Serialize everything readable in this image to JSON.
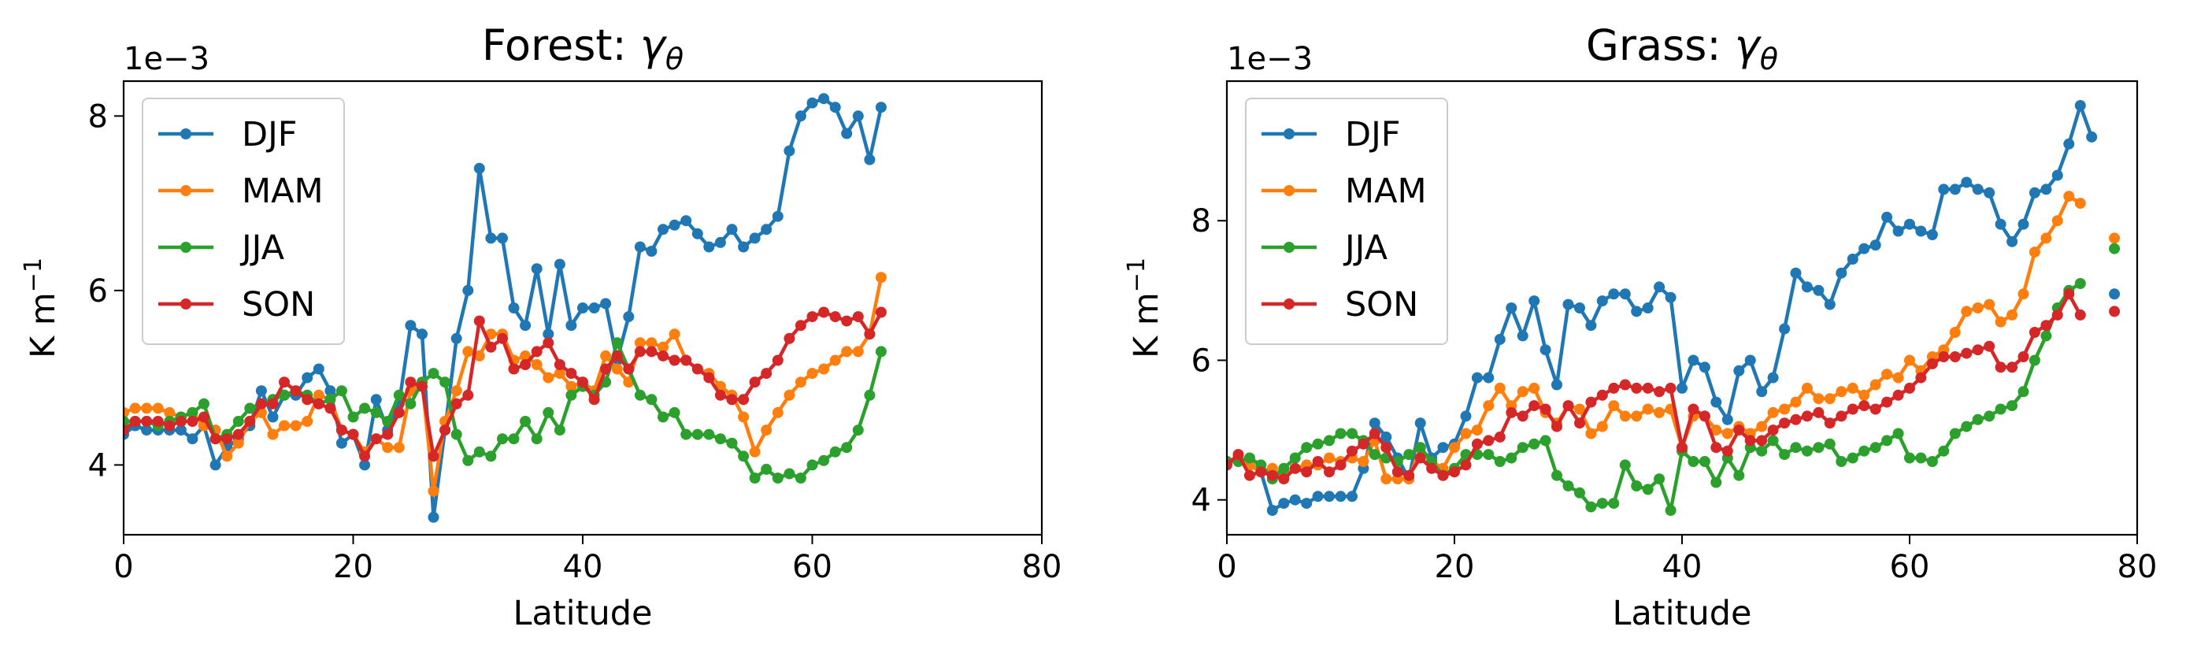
{
  "chart_data": [
    {
      "type": "line",
      "title": "Forest: ",
      "title_symbol": "γ",
      "title_subscript": "θ",
      "xlabel": "Latitude",
      "ylabel_base": "K m",
      "ylabel_sup": "−1",
      "offset_text": "1e−3",
      "xlim": [
        0,
        80
      ],
      "ylim": [
        3.2,
        8.4
      ],
      "xticks": [
        0,
        20,
        40,
        60,
        80
      ],
      "yticks": [
        4,
        6,
        8
      ],
      "grid": false,
      "legend_position": "upper left",
      "x": [
        0,
        1,
        2,
        3,
        4,
        5,
        6,
        7,
        8,
        9,
        10,
        11,
        12,
        13,
        14,
        15,
        16,
        17,
        18,
        19,
        20,
        21,
        22,
        23,
        24,
        25,
        26,
        27,
        28,
        29,
        30,
        31,
        32,
        33,
        34,
        35,
        36,
        37,
        38,
        39,
        40,
        41,
        42,
        43,
        44,
        45,
        46,
        47,
        48,
        49,
        50,
        51,
        52,
        53,
        54,
        55,
        56,
        57,
        58,
        59,
        60,
        61,
        62,
        63,
        64,
        65,
        66
      ],
      "series": [
        {
          "name": "DJF",
          "color": "#1f77b4",
          "values": [
            4.35,
            4.45,
            4.4,
            4.4,
            4.4,
            4.4,
            4.3,
            4.45,
            4.0,
            4.2,
            4.3,
            4.45,
            4.85,
            4.55,
            4.8,
            4.8,
            5.0,
            5.1,
            4.85,
            4.25,
            4.35,
            4.0,
            4.75,
            4.4,
            4.7,
            5.6,
            5.5,
            3.4,
            4.4,
            5.45,
            6.0,
            7.4,
            6.6,
            6.6,
            5.8,
            5.6,
            6.25,
            5.5,
            6.3,
            5.6,
            5.8,
            5.8,
            5.85,
            5.2,
            5.7,
            6.5,
            6.45,
            6.7,
            6.75,
            6.8,
            6.65,
            6.5,
            6.55,
            6.7,
            6.5,
            6.6,
            6.7,
            6.85,
            7.6,
            8.0,
            8.15,
            8.2,
            8.1,
            7.8,
            8.0,
            7.5,
            8.1
          ]
        },
        {
          "name": "MAM",
          "color": "#ff7f0e",
          "values": [
            4.6,
            4.65,
            4.65,
            4.65,
            4.6,
            4.55,
            4.6,
            4.45,
            4.4,
            4.1,
            4.25,
            4.5,
            4.6,
            4.35,
            4.45,
            4.45,
            4.5,
            4.8,
            4.75,
            4.4,
            4.35,
            4.15,
            4.3,
            4.2,
            4.2,
            4.85,
            4.95,
            3.7,
            4.5,
            4.85,
            5.3,
            5.25,
            5.5,
            5.5,
            5.2,
            5.25,
            5.15,
            5.0,
            5.05,
            4.9,
            4.95,
            4.85,
            5.25,
            5.1,
            4.95,
            5.4,
            5.4,
            5.35,
            5.5,
            5.2,
            5.1,
            5.05,
            4.9,
            4.8,
            4.55,
            4.15,
            4.4,
            4.6,
            4.8,
            4.95,
            5.05,
            5.1,
            5.2,
            5.3,
            5.3,
            5.5,
            6.15
          ]
        },
        {
          "name": "JJA",
          "color": "#2ca02c",
          "values": [
            4.5,
            4.5,
            4.5,
            4.45,
            4.5,
            4.55,
            4.6,
            4.7,
            4.3,
            4.35,
            4.5,
            4.65,
            4.7,
            4.75,
            4.8,
            4.85,
            4.8,
            4.7,
            4.75,
            4.85,
            4.55,
            4.65,
            4.6,
            4.5,
            4.8,
            4.7,
            4.95,
            5.05,
            4.95,
            4.35,
            4.05,
            4.15,
            4.1,
            4.3,
            4.3,
            4.5,
            4.3,
            4.6,
            4.4,
            4.8,
            4.9,
            4.8,
            4.95,
            5.4,
            5.1,
            4.8,
            4.75,
            4.55,
            4.6,
            4.35,
            4.35,
            4.35,
            4.3,
            4.25,
            4.1,
            3.85,
            3.95,
            3.85,
            3.9,
            3.85,
            4.0,
            4.05,
            4.15,
            4.2,
            4.4,
            4.8,
            5.3
          ]
        },
        {
          "name": "SON",
          "color": "#d62728",
          "values": [
            4.4,
            4.5,
            4.5,
            4.5,
            4.45,
            4.5,
            4.5,
            4.55,
            4.3,
            4.3,
            4.35,
            4.5,
            4.7,
            4.7,
            4.95,
            4.85,
            4.75,
            4.7,
            4.65,
            4.4,
            4.35,
            4.1,
            4.3,
            4.35,
            4.6,
            4.95,
            4.9,
            4.1,
            4.4,
            4.7,
            4.8,
            5.65,
            5.35,
            5.45,
            5.1,
            5.15,
            5.3,
            5.4,
            5.15,
            5.05,
            4.95,
            4.75,
            5.1,
            5.25,
            5.1,
            5.3,
            5.3,
            5.25,
            5.2,
            5.2,
            5.1,
            5.0,
            4.8,
            4.75,
            4.75,
            4.95,
            5.05,
            5.2,
            5.45,
            5.6,
            5.7,
            5.75,
            5.7,
            5.65,
            5.7,
            5.5,
            5.75
          ]
        }
      ]
    },
    {
      "type": "line",
      "title": "Grass: ",
      "title_symbol": "γ",
      "title_subscript": "θ",
      "xlabel": "Latitude",
      "ylabel_base": "K m",
      "ylabel_sup": "−1",
      "offset_text": "1e−3",
      "xlim": [
        0,
        80
      ],
      "ylim": [
        3.5,
        10.0
      ],
      "xticks": [
        0,
        20,
        40,
        60,
        80
      ],
      "yticks": [
        4,
        6,
        8
      ],
      "grid": false,
      "legend_position": "upper left",
      "x": [
        0,
        1,
        2,
        3,
        4,
        5,
        6,
        7,
        8,
        9,
        10,
        11,
        12,
        13,
        14,
        15,
        16,
        17,
        18,
        19,
        20,
        21,
        22,
        23,
        24,
        25,
        26,
        27,
        28,
        29,
        30,
        31,
        32,
        33,
        34,
        35,
        36,
        37,
        38,
        39,
        40,
        41,
        42,
        43,
        44,
        45,
        46,
        47,
        48,
        49,
        50,
        51,
        52,
        53,
        54,
        55,
        56,
        57,
        58,
        59,
        60,
        61,
        62,
        63,
        64,
        65,
        66,
        67,
        68,
        69,
        70,
        71,
        72,
        73,
        74,
        75,
        76,
        77,
        78
      ],
      "series": [
        {
          "name": "DJF",
          "color": "#1f77b4",
          "values": [
            4.55,
            4.6,
            4.5,
            4.4,
            3.85,
            3.95,
            4.0,
            3.95,
            4.05,
            4.05,
            4.05,
            4.05,
            4.45,
            5.1,
            4.9,
            4.6,
            4.3,
            5.1,
            4.6,
            4.75,
            4.8,
            5.2,
            5.75,
            5.75,
            6.3,
            6.75,
            6.35,
            6.85,
            6.15,
            5.65,
            6.8,
            6.75,
            6.5,
            6.85,
            6.95,
            6.95,
            6.7,
            6.75,
            7.05,
            6.9,
            5.6,
            6.0,
            5.9,
            5.4,
            5.15,
            5.85,
            6.0,
            5.55,
            5.75,
            6.45,
            7.25,
            7.05,
            7.0,
            6.8,
            7.25,
            7.45,
            7.6,
            7.65,
            8.05,
            7.85,
            7.95,
            7.85,
            7.8,
            8.45,
            8.45,
            8.55,
            8.45,
            8.4,
            7.95,
            7.7,
            7.95,
            8.4,
            8.45,
            8.65,
            9.1,
            9.65,
            9.2,
            null,
            6.95
          ]
        },
        {
          "name": "MAM",
          "color": "#ff7f0e",
          "values": [
            4.55,
            4.6,
            4.5,
            4.4,
            4.45,
            4.35,
            4.45,
            4.5,
            4.5,
            4.6,
            4.55,
            4.6,
            4.55,
            4.85,
            4.3,
            4.3,
            4.3,
            4.75,
            4.55,
            4.45,
            4.75,
            4.95,
            5.0,
            5.35,
            5.6,
            5.35,
            5.55,
            5.6,
            5.25,
            5.1,
            5.35,
            5.3,
            4.95,
            5.05,
            5.35,
            5.2,
            5.2,
            5.3,
            5.25,
            5.3,
            4.75,
            5.2,
            5.2,
            5.0,
            4.95,
            5.05,
            4.95,
            5.05,
            5.25,
            5.3,
            5.4,
            5.6,
            5.45,
            5.45,
            5.55,
            5.6,
            5.5,
            5.65,
            5.8,
            5.75,
            6.0,
            5.85,
            6.05,
            6.15,
            6.4,
            6.7,
            6.75,
            6.8,
            6.55,
            6.65,
            6.95,
            7.55,
            7.75,
            8.0,
            8.35,
            8.25,
            null,
            null,
            7.75
          ]
        },
        {
          "name": "JJA",
          "color": "#2ca02c",
          "values": [
            4.55,
            4.55,
            4.6,
            4.5,
            4.3,
            4.45,
            4.6,
            4.75,
            4.8,
            4.85,
            4.95,
            4.95,
            4.85,
            4.65,
            4.6,
            4.55,
            4.65,
            4.75,
            4.55,
            4.35,
            4.45,
            4.65,
            4.65,
            4.65,
            4.55,
            4.6,
            4.75,
            4.8,
            4.85,
            4.35,
            4.2,
            4.1,
            3.9,
            3.95,
            3.95,
            4.5,
            4.2,
            4.15,
            4.3,
            3.85,
            4.7,
            4.55,
            4.55,
            4.25,
            4.6,
            4.35,
            4.75,
            4.7,
            4.85,
            4.65,
            4.75,
            4.7,
            4.75,
            4.8,
            4.55,
            4.6,
            4.7,
            4.75,
            4.85,
            4.95,
            4.6,
            4.6,
            4.55,
            4.7,
            4.95,
            5.05,
            5.15,
            5.2,
            5.3,
            5.35,
            5.55,
            6.0,
            6.35,
            6.75,
            7.0,
            7.1,
            null,
            null,
            7.6
          ]
        },
        {
          "name": "SON",
          "color": "#d62728",
          "values": [
            4.5,
            4.65,
            4.35,
            4.4,
            4.35,
            4.3,
            4.45,
            4.4,
            4.55,
            4.4,
            4.5,
            4.7,
            4.8,
            4.95,
            4.75,
            4.4,
            4.35,
            4.6,
            4.45,
            4.35,
            4.4,
            4.5,
            4.8,
            4.85,
            4.9,
            5.25,
            5.2,
            5.35,
            5.3,
            5.05,
            5.35,
            5.1,
            5.4,
            5.5,
            5.6,
            5.65,
            5.6,
            5.6,
            5.55,
            5.6,
            4.75,
            5.3,
            5.2,
            4.75,
            4.7,
            5.0,
            4.85,
            4.85,
            5.0,
            5.1,
            5.15,
            5.2,
            5.25,
            5.1,
            5.2,
            5.3,
            5.35,
            5.3,
            5.4,
            5.5,
            5.6,
            5.75,
            5.95,
            6.05,
            6.05,
            6.1,
            6.15,
            6.2,
            5.9,
            5.9,
            6.05,
            6.4,
            6.5,
            6.65,
            6.95,
            6.65,
            null,
            null,
            6.7
          ]
        }
      ]
    }
  ]
}
